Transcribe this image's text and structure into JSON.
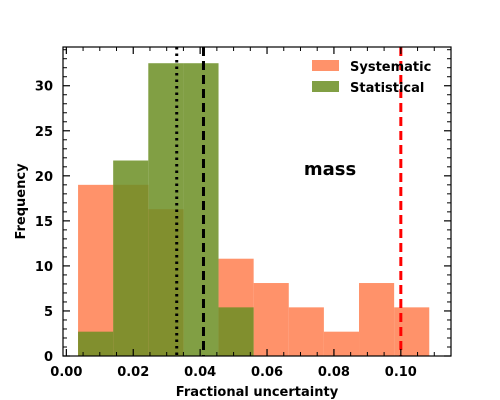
{
  "chart_data": {
    "type": "histogram",
    "xlabel": "Fractional uncertainty",
    "ylabel": "Frequency",
    "xlim": [
      -0.001,
      0.115
    ],
    "ylim": [
      0,
      34.3
    ],
    "x_ticks": [
      0.0,
      0.02,
      0.04,
      0.06,
      0.08,
      0.1
    ],
    "x_tick_labels": [
      "0.00",
      "0.02",
      "0.04",
      "0.06",
      "0.08",
      "0.10"
    ],
    "y_ticks": [
      0,
      5,
      10,
      15,
      20,
      25,
      30
    ],
    "y_tick_labels": [
      "0",
      "5",
      "10",
      "15",
      "20",
      "25",
      "30"
    ],
    "annotation": "mass",
    "legend_position": "top-right",
    "series": [
      {
        "name": "Systematic",
        "color": "#ff7f50",
        "bins": [
          {
            "x0": 0.0035,
            "x1": 0.014,
            "count": 19.0
          },
          {
            "x0": 0.014,
            "x1": 0.0245,
            "count": 19.0
          },
          {
            "x0": 0.0245,
            "x1": 0.035,
            "count": 16.3
          },
          {
            "x0": 0.035,
            "x1": 0.0455,
            "count": 0.0
          },
          {
            "x0": 0.0455,
            "x1": 0.056,
            "count": 10.8
          },
          {
            "x0": 0.056,
            "x1": 0.0665,
            "count": 8.1
          },
          {
            "x0": 0.0665,
            "x1": 0.077,
            "count": 5.4
          },
          {
            "x0": 0.077,
            "x1": 0.0875,
            "count": 2.7
          },
          {
            "x0": 0.0875,
            "x1": 0.098,
            "count": 8.1
          },
          {
            "x0": 0.098,
            "x1": 0.1085,
            "count": 5.4
          }
        ]
      },
      {
        "name": "Statistical",
        "color": "#6b8e23",
        "bins": [
          {
            "x0": 0.0035,
            "x1": 0.014,
            "count": 2.7
          },
          {
            "x0": 0.014,
            "x1": 0.0245,
            "count": 21.7
          },
          {
            "x0": 0.0245,
            "x1": 0.035,
            "count": 32.5
          },
          {
            "x0": 0.035,
            "x1": 0.0455,
            "count": 32.5
          },
          {
            "x0": 0.0455,
            "x1": 0.056,
            "count": 5.4
          }
        ]
      }
    ],
    "vlines": [
      {
        "x": 0.033,
        "style": "dotted",
        "color": "#000000"
      },
      {
        "x": 0.041,
        "style": "dashed",
        "color": "#000000"
      },
      {
        "x": 0.1,
        "style": "dashed",
        "color": "#ff0000"
      }
    ]
  }
}
